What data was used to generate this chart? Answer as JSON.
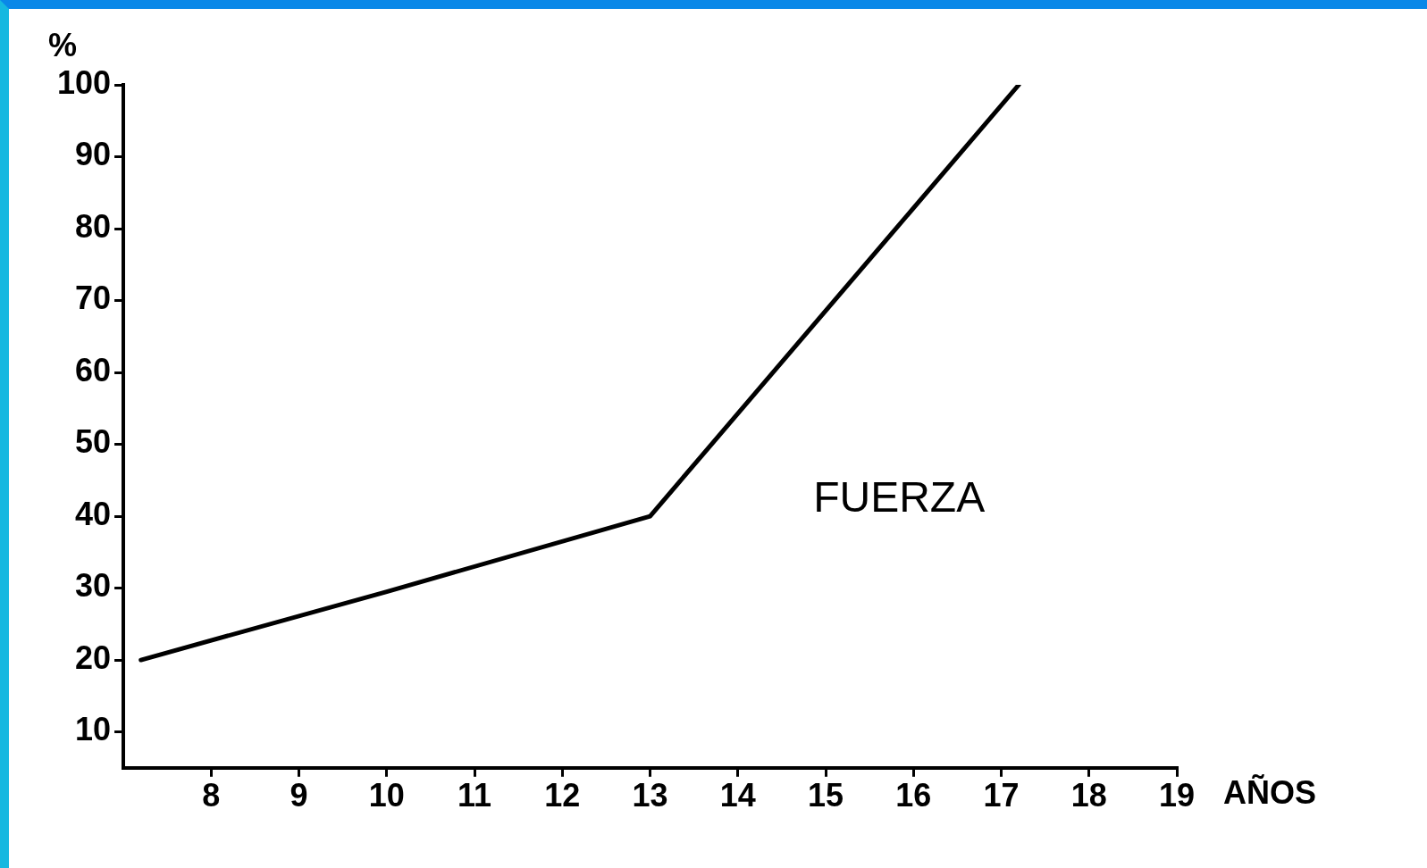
{
  "chart_data": {
    "type": "line",
    "xlabel": "AÑOS",
    "ylabel": "%",
    "xlim": [
      7,
      19
    ],
    "xticks": [
      8,
      9,
      10,
      11,
      12,
      13,
      14,
      15,
      16,
      17,
      18,
      19
    ],
    "ylim": [
      5,
      100
    ],
    "yticks": [
      10,
      20,
      30,
      40,
      50,
      60,
      70,
      80,
      90,
      100
    ],
    "grid": false,
    "legend": false,
    "marker": "none",
    "line_style": "solid",
    "series": [
      {
        "name": "FUERZA",
        "color": "#000000",
        "x": [
          7.2,
          10,
          13,
          17.2
        ],
        "values": [
          20,
          29.5,
          40,
          100
        ]
      }
    ]
  }
}
